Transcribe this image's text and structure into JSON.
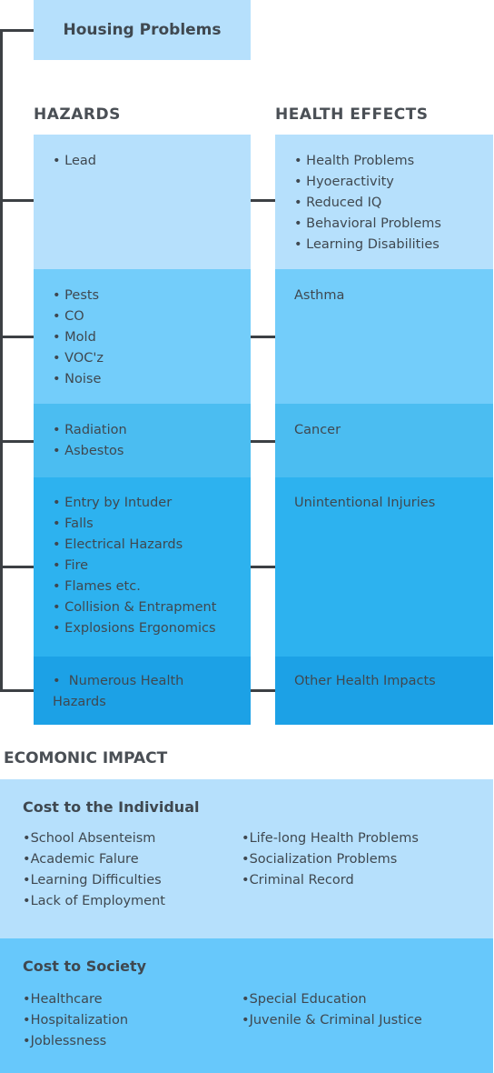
{
  "title": "Housing Problems",
  "hazards_heading": "HAZARDS",
  "effects_heading": "HEALTH EFFECTS",
  "rows": [
    {
      "hazards": [
        "Lead"
      ],
      "effects": [
        "Health Problems",
        "Hyoeractivity",
        "Reduced IQ",
        "Behavioral Problems",
        "Learning Disabilities"
      ],
      "effect_label": ""
    },
    {
      "hazards": [
        "Pests",
        "CO",
        "Mold",
        "VOC'z",
        "Noise"
      ],
      "effects": [],
      "effect_label": "Asthma"
    },
    {
      "hazards": [
        "Radiation",
        "Asbestos"
      ],
      "effects": [],
      "effect_label": "Cancer"
    },
    {
      "hazards": [
        "Entry by Intuder",
        "Falls",
        "Electrical Hazards",
        "Fire",
        "Flames etc.",
        "Collision & Entrapment",
        "Explosions Ergonomics"
      ],
      "effects": [],
      "effect_label": "Unintentional Injuries"
    },
    {
      "hazards": [
        "Numerous Health Hazards"
      ],
      "effects": [],
      "effect_label": "Other Health Impacts"
    }
  ],
  "colors": {
    "title_bg": "#b6e0fc",
    "row_bg": [
      "#b6e0fc",
      "#73cdfa",
      "#4bbdf1",
      "#2db2ef",
      "#1ca1e6"
    ],
    "cost_individual_bg": "#b6e0fc",
    "cost_society_bg": "#67c8fb",
    "connector": "#3c4044"
  },
  "economic": {
    "heading": "ECOMONIC IMPACT",
    "individual": {
      "title": "Cost to the Individual",
      "col1": [
        "School Absenteism",
        "Academic Falure",
        "Learning Difficulties",
        "Lack of Employment"
      ],
      "col2": [
        "Life-long Health Problems",
        "Socialization Problems",
        "Criminal Record"
      ]
    },
    "society": {
      "title": "Cost to Society",
      "col1": [
        "Healthcare",
        "Hospitalization",
        "Joblessness"
      ],
      "col2": [
        "Special Education",
        "Juvenile & Criminal Justice"
      ]
    }
  }
}
